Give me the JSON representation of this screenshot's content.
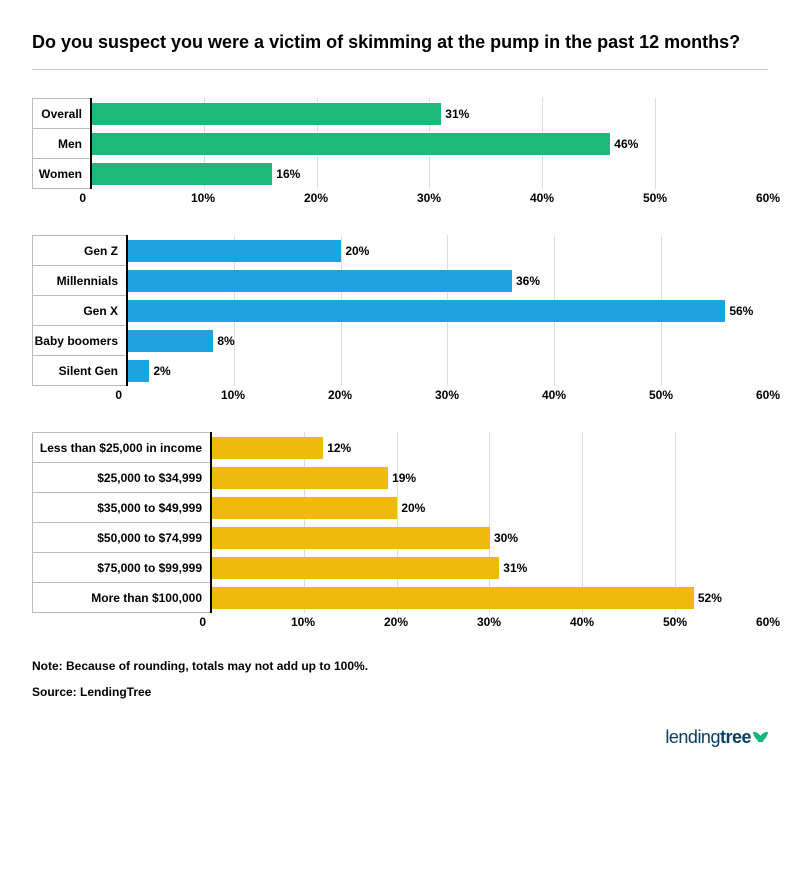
{
  "title": "Do you suspect you were a victim of skimming at the pump in the past 12 months?",
  "note": "Note: Because of rounding, totals may not add up to 100%.",
  "source": "Source: LendingTree",
  "logo": {
    "part1": "lending",
    "part2": "tree",
    "color": "#0a3d62",
    "leaf_color": "#0fb77f"
  },
  "axis": {
    "xmax": 60,
    "ticks": [
      10,
      20,
      30,
      40,
      50,
      60
    ],
    "tick_labels": [
      "10%",
      "20%",
      "30%",
      "40%",
      "50%",
      "60%"
    ],
    "zero": "0",
    "grid_color": "#dddddd",
    "axis_text_color": "#000000",
    "font_size": 12
  },
  "charts": [
    {
      "id": "gender",
      "label_width": 58,
      "bar_color": "#1db97a",
      "rows": [
        {
          "label": "Overall",
          "value": 31,
          "display": "31%"
        },
        {
          "label": "Men",
          "value": 46,
          "display": "46%"
        },
        {
          "label": "Women",
          "value": 16,
          "display": "16%"
        }
      ]
    },
    {
      "id": "generation",
      "label_width": 94,
      "bar_color": "#1fa3e0",
      "rows": [
        {
          "label": "Gen Z",
          "value": 20,
          "display": "20%"
        },
        {
          "label": "Millennials",
          "value": 36,
          "display": "36%"
        },
        {
          "label": "Gen X",
          "value": 56,
          "display": "56%"
        },
        {
          "label": "Baby boomers",
          "value": 8,
          "display": "8%"
        },
        {
          "label": "Silent Gen",
          "value": 2,
          "display": "2%"
        }
      ]
    },
    {
      "id": "income",
      "label_width": 178,
      "bar_color": "#f0b90b",
      "rows": [
        {
          "label": "Less than $25,000 in income",
          "value": 12,
          "display": "12%"
        },
        {
          "label": "$25,000 to $34,999",
          "value": 19,
          "display": "19%"
        },
        {
          "label": "$35,000 to $49,999",
          "value": 20,
          "display": "20%"
        },
        {
          "label": "$50,000 to $74,999",
          "value": 30,
          "display": "30%"
        },
        {
          "label": "$75,000 to $99,999",
          "value": 31,
          "display": "31%"
        },
        {
          "label": "More than $100,000",
          "value": 52,
          "display": "52%"
        }
      ]
    }
  ]
}
